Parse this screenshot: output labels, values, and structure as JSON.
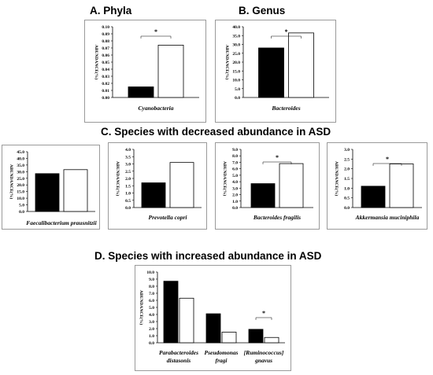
{
  "titles": {
    "phyla": "A. Phyla",
    "genus": "B. Genus",
    "decreased": "C. Species with decreased abundance  in ASD",
    "increased": "D. Species with increased abundance in ASD"
  },
  "colors": {
    "asd_bar": "#000000",
    "control_bar": "#ffffff",
    "frame": "#9a9a9a"
  },
  "chart_data": [
    {
      "id": "A",
      "type": "bar",
      "ylabel": "ABUNDANCE(%)",
      "ylim": [
        0,
        0.1
      ],
      "ticks": [
        "0.00",
        "0.01",
        "0.02",
        "0.03",
        "0.04",
        "0.05",
        "0.06",
        "0.07",
        "0.08",
        "0.09",
        "0.10"
      ],
      "categories": [
        [
          "Cyanobacteria"
        ]
      ],
      "series": [
        {
          "values": [
            0.015
          ]
        },
        {
          "values": [
            0.074
          ]
        }
      ],
      "significance": [
        {
          "category": 0,
          "label": "*"
        }
      ]
    },
    {
      "id": "B",
      "type": "bar",
      "ylabel": "ABUNDANCE(%)",
      "ylim": [
        0,
        40
      ],
      "ticks": [
        "0.0",
        "5.0",
        "10.0",
        "15.0",
        "20.0",
        "25.0",
        "30.0",
        "35.0",
        "40.0"
      ],
      "categories": [
        [
          "Bacteroides"
        ]
      ],
      "series": [
        {
          "values": [
            28.0
          ]
        },
        {
          "values": [
            36.5
          ]
        }
      ],
      "significance": [
        {
          "category": 0,
          "label": "*"
        }
      ]
    },
    {
      "id": "C1",
      "type": "bar",
      "ylabel": "ABUNDANCE(%)",
      "ylim": [
        0,
        45
      ],
      "ticks": [
        "0.0",
        "5.0",
        "10.0",
        "15.0",
        "20.0",
        "25.0",
        "30.0",
        "35.0",
        "40.0",
        "45.0"
      ],
      "categories": [
        [
          "Faecalibacterium prausnitzii"
        ]
      ],
      "series": [
        {
          "values": [
            28.5
          ]
        },
        {
          "values": [
            31.5
          ]
        }
      ],
      "significance": []
    },
    {
      "id": "C2",
      "type": "bar",
      "ylabel": "ABUNDANCE(%)",
      "ylim": [
        0,
        4
      ],
      "ticks": [
        "0.0",
        "0.5",
        "1.0",
        "1.5",
        "2.0",
        "2.5",
        "3.0",
        "3.5",
        "4.0"
      ],
      "categories": [
        [
          "Prevotella copri"
        ]
      ],
      "series": [
        {
          "values": [
            1.7
          ]
        },
        {
          "values": [
            3.1
          ]
        }
      ],
      "significance": []
    },
    {
      "id": "C3",
      "type": "bar",
      "ylabel": "ABUNDANCE(%)",
      "ylim": [
        0,
        9
      ],
      "ticks": [
        "0.0",
        "1.0",
        "2.0",
        "3.0",
        "4.0",
        "5.0",
        "6.0",
        "7.0",
        "8.0",
        "9.0"
      ],
      "categories": [
        [
          "Bacteroides fragilis"
        ]
      ],
      "series": [
        {
          "values": [
            3.7
          ]
        },
        {
          "values": [
            6.8
          ]
        }
      ],
      "significance": [
        {
          "category": 0,
          "label": "*"
        }
      ]
    },
    {
      "id": "C4",
      "type": "bar",
      "ylabel": "ABUNDANCE(%)",
      "ylim": [
        0,
        3
      ],
      "ticks": [
        "0.0",
        "0.5",
        "1.0",
        "1.5",
        "2.0",
        "2.5",
        "3.0"
      ],
      "categories": [
        [
          "Akkermansia muciniphila"
        ]
      ],
      "series": [
        {
          "values": [
            1.1
          ]
        },
        {
          "values": [
            2.25
          ]
        }
      ],
      "significance": [
        {
          "category": 0,
          "label": "*"
        }
      ]
    },
    {
      "id": "D",
      "type": "bar",
      "ylabel": "ABUNDANCE(%)",
      "ylim": [
        0,
        10
      ],
      "ticks": [
        "0.0",
        "1.0",
        "2.0",
        "3.0",
        "4.0",
        "5.0",
        "6.0",
        "7.0",
        "8.0",
        "9.0",
        "10.0"
      ],
      "categories": [
        [
          "Parabacteroides",
          "distasonis"
        ],
        [
          "Pseudomonas",
          "fragi"
        ],
        [
          "[Ruminococcus]",
          "gnavus"
        ]
      ],
      "series": [
        {
          "values": [
            8.7,
            4.1,
            1.9
          ]
        },
        {
          "values": [
            6.3,
            1.5,
            0.75
          ]
        }
      ],
      "significance": [
        {
          "category": 2,
          "label": "*"
        }
      ]
    }
  ]
}
